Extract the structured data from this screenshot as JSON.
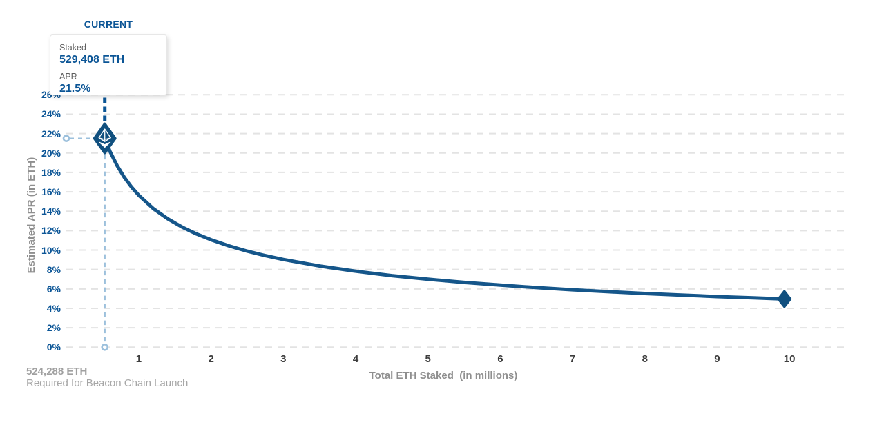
{
  "tooltip": {
    "title": "CURRENT",
    "staked_label": "Staked",
    "staked_value": "529,408 ETH",
    "apr_label": "APR",
    "apr_value": "21.5%"
  },
  "footnote": {
    "line1": "524,288 ETH",
    "line2": "Required for Beacon Chain Launch"
  },
  "chart_data": {
    "type": "line",
    "title": "CURRENT",
    "xlabel": "Total ETH Staked  (in millions)",
    "ylabel": "Estimated APR (in ETH)",
    "xlim": [
      0,
      10.77
    ],
    "ylim": [
      0,
      26
    ],
    "x_ticks": [
      1,
      2,
      3,
      4,
      5,
      6,
      7,
      8,
      9,
      10
    ],
    "y_ticks_percent": [
      0,
      2,
      4,
      6,
      8,
      10,
      12,
      14,
      16,
      18,
      20,
      22,
      24,
      26
    ],
    "grid": "horizontal dashed",
    "legend": "none",
    "current_point": {
      "staked_millions": 0.529408,
      "apr_percent": 21.5
    },
    "end_point": {
      "staked_millions": 9.93,
      "apr_percent": 4.96
    },
    "launch_threshold_eth": "524,288 ETH",
    "series": [
      {
        "name": "Estimated APR (in ETH)",
        "points": [
          [
            0.5294,
            21.5
          ],
          [
            0.6,
            20.19
          ],
          [
            0.7,
            18.7
          ],
          [
            0.8,
            17.49
          ],
          [
            0.9,
            16.49
          ],
          [
            1.0,
            15.64
          ],
          [
            1.2,
            14.28
          ],
          [
            1.4,
            13.22
          ],
          [
            1.6,
            12.37
          ],
          [
            1.8,
            11.66
          ],
          [
            2.0,
            11.06
          ],
          [
            2.25,
            10.43
          ],
          [
            2.5,
            9.89
          ],
          [
            2.75,
            9.43
          ],
          [
            3.0,
            9.03
          ],
          [
            3.5,
            8.36
          ],
          [
            4.0,
            7.82
          ],
          [
            4.5,
            7.37
          ],
          [
            5.0,
            7.0
          ],
          [
            5.5,
            6.67
          ],
          [
            6.0,
            6.39
          ],
          [
            6.5,
            6.14
          ],
          [
            7.0,
            5.91
          ],
          [
            7.5,
            5.71
          ],
          [
            8.0,
            5.53
          ],
          [
            8.5,
            5.37
          ],
          [
            9.0,
            5.21
          ],
          [
            9.5,
            5.08
          ],
          [
            9.93,
            4.96
          ]
        ]
      }
    ],
    "colors": {
      "line": "#15568a",
      "marker": "#11507f",
      "text_blue": "#0b5596",
      "helper_blue": "#9cc0dc",
      "grid": "#e3e3e3",
      "x_tick_gray": "#3d3d3d",
      "axis_label_gray": "#8f8f8f",
      "footnote_gray": "#a6a6a6"
    }
  }
}
